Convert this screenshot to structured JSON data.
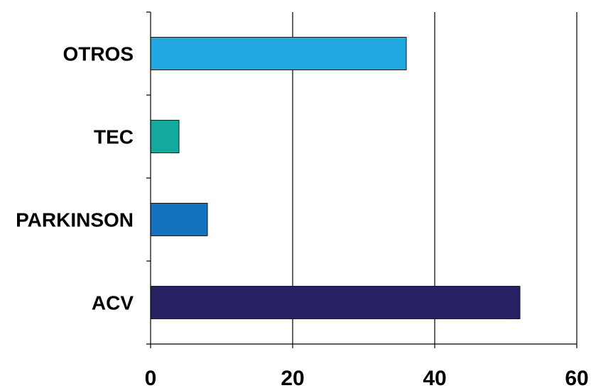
{
  "chart_data": {
    "type": "bar",
    "orientation": "horizontal",
    "title": "",
    "xlabel": "",
    "ylabel": "",
    "categories": [
      "ACV",
      "PARKINSON",
      "TEC",
      "OTROS"
    ],
    "values": [
      52,
      8,
      4,
      36
    ],
    "colors": [
      "#262262",
      "#1572c0",
      "#14a99e",
      "#22a9e1"
    ],
    "xlim": [
      0,
      60
    ],
    "xticks": [
      0,
      20,
      40,
      60
    ],
    "xtick_labels": [
      "0",
      "20",
      "40",
      "60"
    ],
    "grid": "vertical",
    "legend": "none"
  }
}
